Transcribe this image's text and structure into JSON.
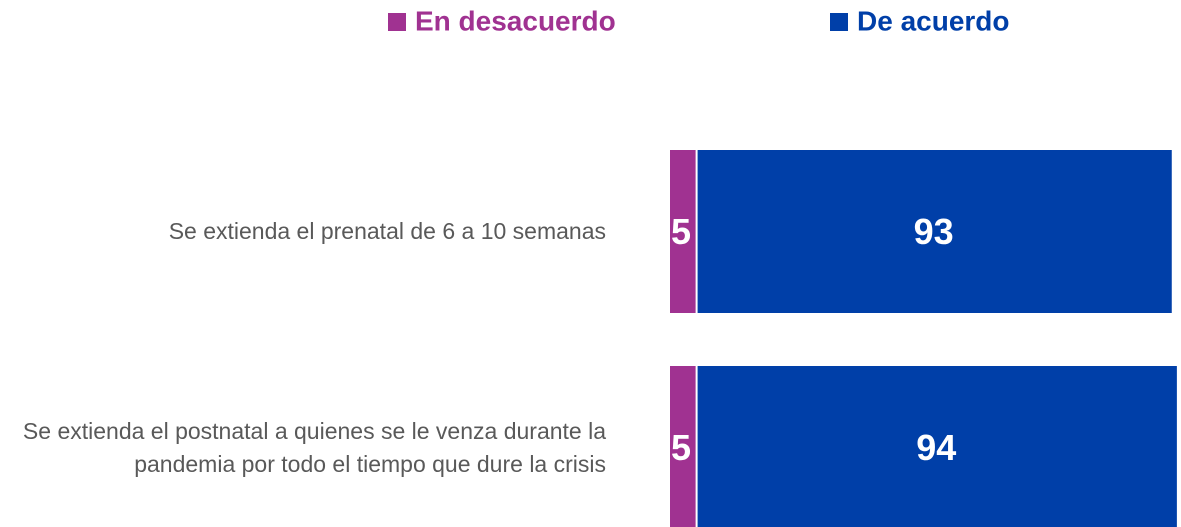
{
  "chart_data": {
    "type": "stacked-bar-horizontal",
    "categories": [
      "Se extienda el prenatal de 6 a 10 semanas",
      "Se extienda el postnatal a quienes se le venza durante la pandemia por todo el tiempo que dure la crisis"
    ],
    "series": [
      {
        "name": "En desacuerdo",
        "color": "#a03291",
        "values": [
          5,
          5
        ]
      },
      {
        "name": "De acuerdo",
        "color": "#003fa8",
        "values": [
          93,
          94
        ]
      }
    ],
    "legend": "top"
  }
}
